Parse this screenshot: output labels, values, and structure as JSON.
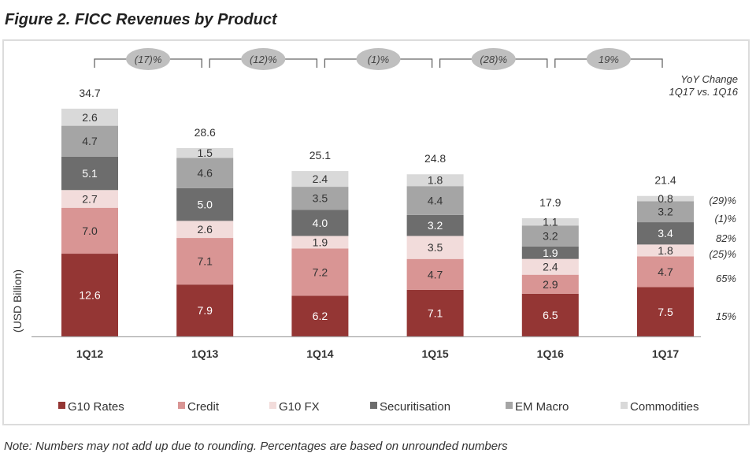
{
  "figure_title": "Figure 2. FICC Revenues by Product",
  "note": "Note: Numbers may not add up due to rounding. Percentages are based on unrounded numbers",
  "chart_data": {
    "type": "bar",
    "stacked": true,
    "title": "Figure 2. FICC Revenues by Product",
    "xlabel": "",
    "ylabel": "(USD Billion)",
    "categories": [
      "1Q12",
      "1Q13",
      "1Q14",
      "1Q15",
      "1Q16",
      "1Q17"
    ],
    "series": [
      {
        "name": "G10 Rates",
        "color": "#943634",
        "values": [
          12.6,
          7.9,
          6.2,
          7.1,
          6.5,
          7.5
        ]
      },
      {
        "name": "Credit",
        "color": "#d99594",
        "values": [
          7.0,
          7.1,
          7.2,
          4.7,
          2.9,
          4.7
        ]
      },
      {
        "name": "G10 FX",
        "color": "#f2dcdb",
        "values": [
          2.7,
          2.6,
          1.9,
          3.5,
          2.4,
          1.8
        ]
      },
      {
        "name": "Securitisation",
        "color": "#6d6d6d",
        "values": [
          5.1,
          5.0,
          4.0,
          3.2,
          1.9,
          3.4
        ]
      },
      {
        "name": "EM Macro",
        "color": "#a5a5a5",
        "values": [
          4.7,
          4.6,
          3.5,
          4.4,
          3.2,
          3.2
        ]
      },
      {
        "name": "Commodities",
        "color": "#d9d9d9",
        "values": [
          2.6,
          1.5,
          2.4,
          1.8,
          1.1,
          0.8
        ]
      }
    ],
    "totals": [
      34.7,
      28.6,
      25.1,
      24.8,
      17.9,
      21.4
    ],
    "period_changes": [
      "(17)%",
      "(12)%",
      "(1)%",
      "(28)%",
      "19%"
    ],
    "yoy_change_header": [
      "YoY Change",
      "1Q17 vs. 1Q16"
    ],
    "yoy_change_by_series": [
      "15%",
      "65%",
      "(25)%",
      "82%",
      "(1)%",
      "(29)%"
    ],
    "ylim": [
      0,
      35
    ],
    "grid": false,
    "legend_position": "bottom"
  }
}
